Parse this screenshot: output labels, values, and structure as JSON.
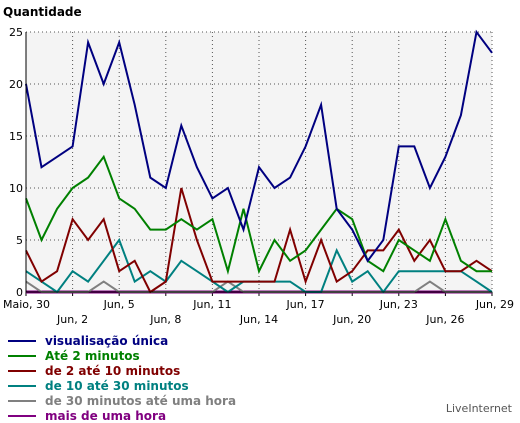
{
  "chart_data": {
    "type": "line",
    "ylabel": "Quantidade",
    "ylim": [
      0,
      25
    ],
    "yticks": [
      0,
      5,
      10,
      15,
      20,
      25
    ],
    "x": [
      "Maio, 30",
      "May 31",
      "Jun 1",
      "Jun, 2",
      "Jun 3",
      "Jun 4",
      "Jun, 5",
      "Jun 6",
      "Jun 7",
      "Jun, 8",
      "Jun 9",
      "Jun 10",
      "Jun, 11",
      "Jun 12",
      "Jun 13",
      "Jun, 14",
      "Jun 15",
      "Jun 16",
      "Jun, 17",
      "Jun 18",
      "Jun 19",
      "Jun, 20",
      "Jun 21",
      "Jun 22",
      "Jun, 23",
      "Jun 24",
      "Jun 25",
      "Jun, 26",
      "Jun 27",
      "Jun 28",
      "Jun, 29"
    ],
    "xtick_labels": [
      {
        "index": 0,
        "label": "Maio, 30",
        "row": 1
      },
      {
        "index": 3,
        "label": "Jun, 2",
        "row": 2
      },
      {
        "index": 6,
        "label": "Jun, 5",
        "row": 1
      },
      {
        "index": 9,
        "label": "Jun, 8",
        "row": 2
      },
      {
        "index": 12,
        "label": "Jun, 11",
        "row": 1
      },
      {
        "index": 15,
        "label": "Jun, 14",
        "row": 2
      },
      {
        "index": 18,
        "label": "Jun, 17",
        "row": 1
      },
      {
        "index": 21,
        "label": "Jun, 20",
        "row": 2
      },
      {
        "index": 24,
        "label": "Jun, 23",
        "row": 1
      },
      {
        "index": 27,
        "label": "Jun, 26",
        "row": 2
      },
      {
        "index": 30,
        "label": "Jun, 29",
        "row": 1
      }
    ],
    "grid": true,
    "legend_position": "bottom-left",
    "series": [
      {
        "name": "visualisação única",
        "color": "#000080",
        "values": [
          20,
          12,
          13,
          14,
          24,
          20,
          24,
          18,
          11,
          10,
          16,
          12,
          9,
          10,
          6,
          12,
          10,
          11,
          14,
          18,
          8,
          6,
          3,
          5,
          14,
          14,
          10,
          13,
          17,
          25,
          23
        ]
      },
      {
        "name": "Até 2 minutos",
        "color": "#008000",
        "values": [
          9,
          5,
          8,
          10,
          11,
          13,
          9,
          8,
          6,
          6,
          7,
          6,
          7,
          2,
          8,
          2,
          5,
          3,
          4,
          6,
          8,
          7,
          3,
          2,
          5,
          4,
          3,
          7,
          3,
          2,
          2
        ]
      },
      {
        "name": "de 2 até 10 minutos",
        "color": "#800000",
        "values": [
          4,
          1,
          2,
          7,
          5,
          7,
          2,
          3,
          0,
          1,
          10,
          5,
          1,
          1,
          1,
          1,
          1,
          6,
          1,
          5,
          1,
          2,
          4,
          4,
          6,
          3,
          5,
          2,
          2,
          3,
          2
        ]
      },
      {
        "name": "de 10 até 30 minutos",
        "color": "#008080",
        "values": [
          2,
          1,
          0,
          2,
          1,
          3,
          5,
          1,
          2,
          1,
          3,
          2,
          1,
          0,
          1,
          1,
          1,
          1,
          0,
          0,
          4,
          1,
          2,
          0,
          2,
          2,
          2,
          2,
          2,
          1,
          0
        ]
      },
      {
        "name": "de 30 minutos até uma hora",
        "color": "#808080",
        "values": [
          1,
          0,
          0,
          0,
          0,
          1,
          0,
          0,
          0,
          0,
          0,
          0,
          0,
          1,
          0,
          0,
          0,
          0,
          0,
          0,
          0,
          0,
          0,
          0,
          0,
          0,
          1,
          0,
          0,
          0,
          0
        ]
      },
      {
        "name": "mais de uma hora",
        "color": "#800080",
        "values": [
          0,
          0,
          0,
          0,
          0,
          0,
          0,
          0,
          0,
          0,
          0,
          0,
          0,
          0,
          0,
          0,
          0,
          0,
          0,
          0,
          0,
          0,
          0,
          0,
          0,
          0,
          0,
          0,
          0,
          0,
          0
        ]
      }
    ]
  },
  "credit": "LiveInternet"
}
